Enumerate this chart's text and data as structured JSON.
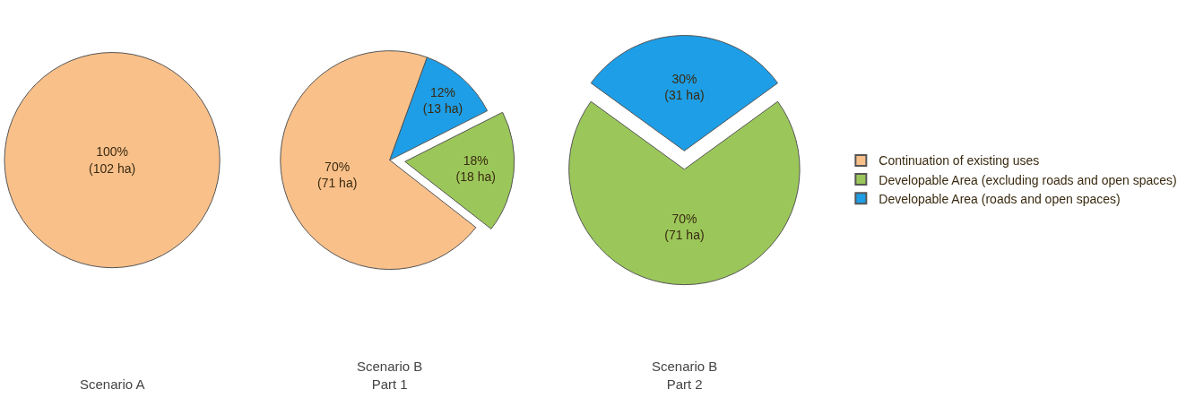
{
  "chart_data": [
    {
      "type": "pie",
      "title": "Scenario A",
      "categories": [
        null
      ],
      "values": [
        100
      ],
      "colors": [
        "#f9c08a"
      ],
      "value_labels": [
        "100%\n(102 ha)"
      ]
    },
    {
      "type": "pie",
      "title": "Scenario B\nPart 1",
      "categories": [
        "Continuation of existing uses",
        "Developable Area (excluding roads and open spaces)",
        "Developable Area (roads and open spaces)"
      ],
      "values": [
        70,
        18,
        12
      ],
      "colors": [
        "#f9c08a",
        "#9bc75a",
        "#1e9ee6"
      ],
      "value_labels": [
        "70%\n(71 ha)",
        "18%\n(18 ha)",
        "12%\n(13 ha)"
      ],
      "legend": "right"
    },
    {
      "type": "pie",
      "title": "Scenario B\nPart 2",
      "categories": [
        null,
        null
      ],
      "values": [
        70,
        30
      ],
      "colors": [
        "#9bc75a",
        "#1e9ee6"
      ],
      "value_labels": [
        "70%\n(71 ha)",
        "30%\n(31 ha)"
      ]
    }
  ]
}
